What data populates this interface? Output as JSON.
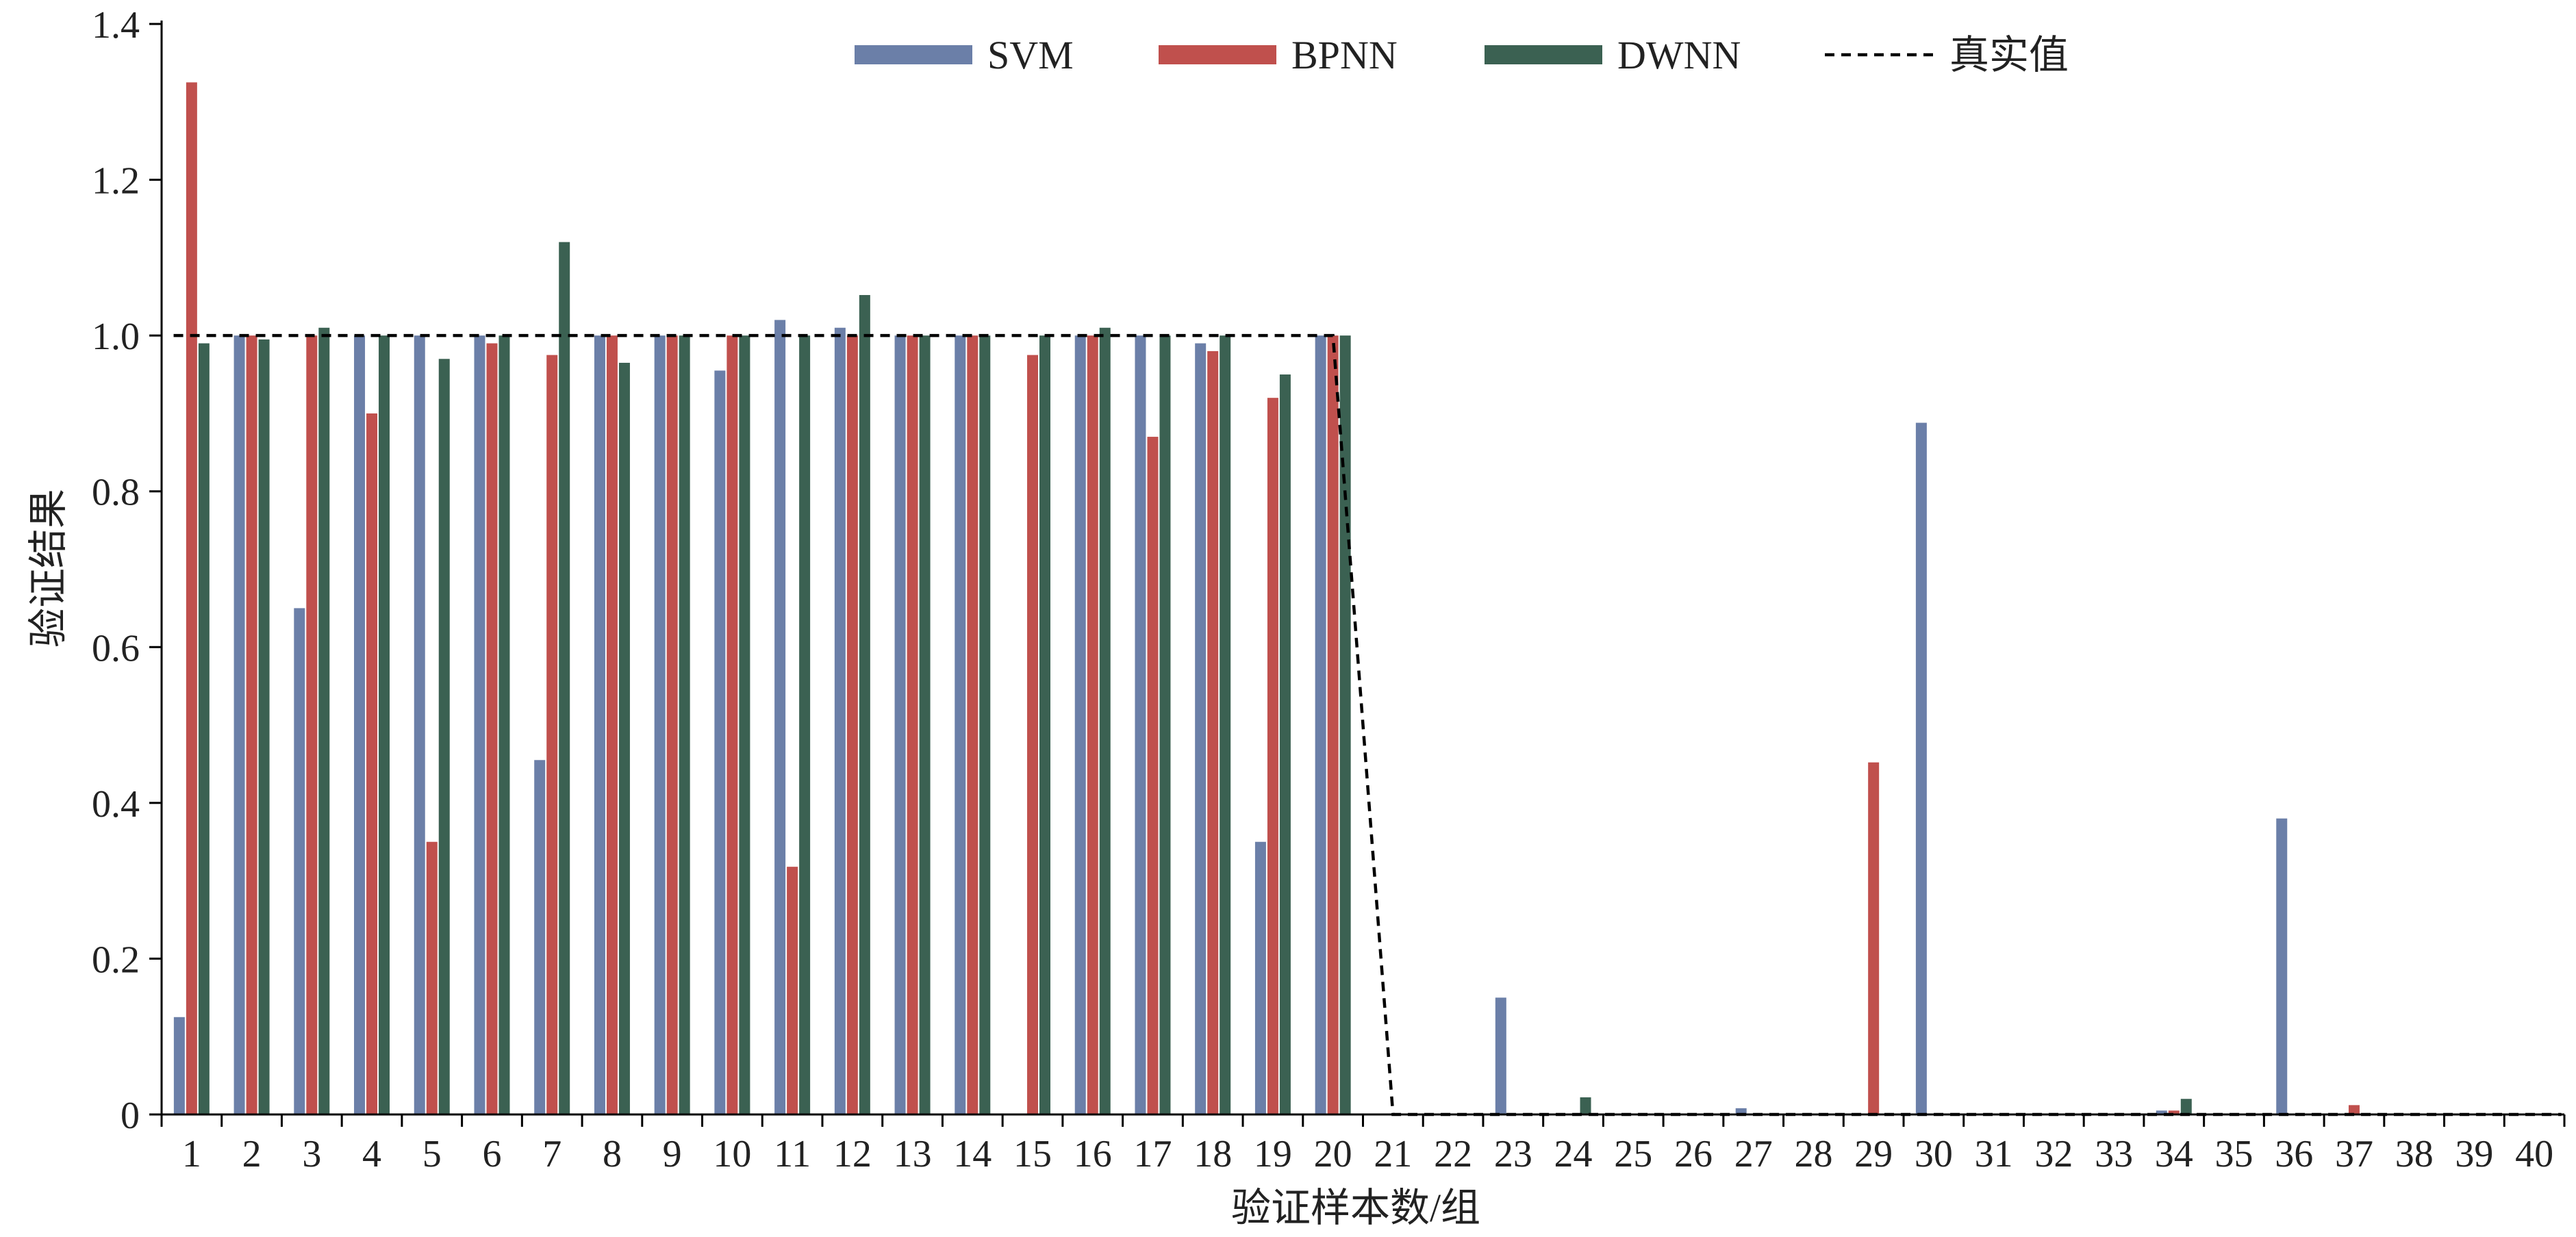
{
  "chart_data": {
    "type": "bar",
    "xlabel": "验证样本数/组",
    "ylabel": "验证结果",
    "ylim": [
      0,
      1.4
    ],
    "yticks": [
      "0",
      "0.2",
      "0.4",
      "0.6",
      "0.8",
      "1.0",
      "1.2",
      "1.4"
    ],
    "grid": false,
    "legend_position": "top-center",
    "categories": [
      "1",
      "2",
      "3",
      "4",
      "5",
      "6",
      "7",
      "8",
      "9",
      "10",
      "11",
      "12",
      "13",
      "14",
      "15",
      "16",
      "17",
      "18",
      "19",
      "20",
      "21",
      "22",
      "23",
      "24",
      "25",
      "26",
      "27",
      "28",
      "29",
      "30",
      "31",
      "32",
      "33",
      "34",
      "35",
      "36",
      "37",
      "38",
      "39",
      "40"
    ],
    "series": [
      {
        "name": "SVM",
        "color": "#6b7fa8",
        "values": [
          0.125,
          1.0,
          0.65,
          1.0,
          1.0,
          1.0,
          0.455,
          1.0,
          1.0,
          0.955,
          1.02,
          1.01,
          1.0,
          1.0,
          0.0,
          1.0,
          1.0,
          0.99,
          0.35,
          1.0,
          0,
          0,
          0.15,
          0,
          0,
          0,
          0.008,
          0,
          0,
          0.888,
          0,
          0,
          0,
          0.005,
          0,
          0.38,
          0,
          0,
          0,
          0
        ]
      },
      {
        "name": "BPNN",
        "color": "#c0504d",
        "values": [
          1.325,
          1.0,
          1.0,
          0.9,
          0.35,
          0.99,
          0.975,
          1.0,
          1.0,
          1.0,
          0.318,
          1.0,
          1.0,
          1.0,
          0.975,
          1.0,
          0.87,
          0.98,
          0.92,
          1.0,
          0,
          0,
          0,
          0,
          0,
          0,
          0,
          0,
          0.452,
          0,
          0,
          0,
          0,
          0.005,
          0,
          0,
          0.012,
          0,
          0,
          0
        ]
      },
      {
        "name": "DWNN",
        "color": "#3b6152",
        "values": [
          0.99,
          0.995,
          1.01,
          1.0,
          0.97,
          1.0,
          1.12,
          0.965,
          1.0,
          1.0,
          1.0,
          1.052,
          1.0,
          1.0,
          1.0,
          1.01,
          1.0,
          1.0,
          0.95,
          1.0,
          0,
          0,
          0,
          0.022,
          0,
          0,
          0,
          0,
          0,
          0,
          0,
          0,
          0,
          0.02,
          0,
          0,
          0,
          0,
          0,
          0
        ]
      }
    ],
    "reference_line": {
      "name": "真实值",
      "style": "dashed",
      "color": "#000000",
      "values": [
        1,
        1,
        1,
        1,
        1,
        1,
        1,
        1,
        1,
        1,
        1,
        1,
        1,
        1,
        1,
        1,
        1,
        1,
        1,
        1,
        0,
        0,
        0,
        0,
        0,
        0,
        0,
        0,
        0,
        0,
        0,
        0,
        0,
        0,
        0,
        0,
        0,
        0,
        0,
        0
      ]
    }
  }
}
